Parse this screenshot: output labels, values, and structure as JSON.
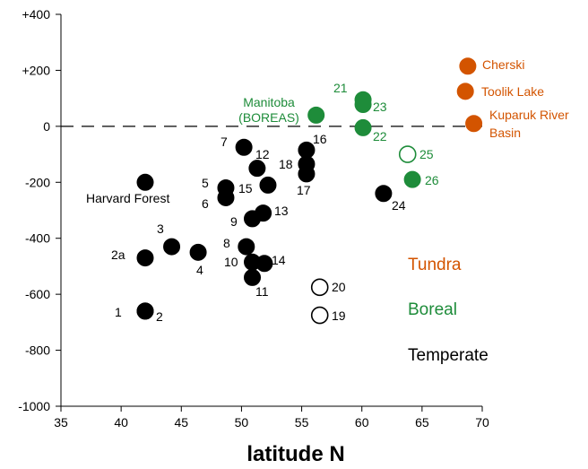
{
  "colors": {
    "tundra": "#d35400",
    "boreal": "#1e8c3a",
    "temperate": "#000000"
  },
  "chart_data": {
    "type": "scatter",
    "title": "",
    "xlabel": "latitude N",
    "ylabel": "",
    "xlim": [
      35,
      70
    ],
    "ylim": [
      -1000,
      400
    ],
    "xticks": [
      "35",
      "40",
      "45",
      "50",
      "55",
      "60",
      "65",
      "70"
    ],
    "yticks": [
      "-1000",
      "-800",
      "-600",
      "-400",
      "-200",
      "0",
      "+200",
      "+400"
    ],
    "zero_reference_line": true,
    "grid": false,
    "points": [
      {
        "id": "1",
        "x": 42.0,
        "y": -660,
        "group": "temperate",
        "filled": true
      },
      {
        "id": "2",
        "x": 42.0,
        "y": -660,
        "group": "temperate",
        "filled": true
      },
      {
        "id": "2a",
        "x": 42.0,
        "y": -470,
        "group": "temperate",
        "filled": true
      },
      {
        "id": "3",
        "x": 44.2,
        "y": -430,
        "group": "temperate",
        "filled": true
      },
      {
        "id": "4",
        "x": 46.4,
        "y": -450,
        "group": "temperate",
        "filled": true
      },
      {
        "id": "Harvard Forest",
        "x": 42.0,
        "y": -200,
        "group": "temperate",
        "filled": true
      },
      {
        "id": "5",
        "x": 48.7,
        "y": -220,
        "group": "temperate",
        "filled": true
      },
      {
        "id": "6",
        "x": 48.7,
        "y": -255,
        "group": "temperate",
        "filled": true
      },
      {
        "id": "7",
        "x": 50.2,
        "y": -75,
        "group": "temperate",
        "filled": true
      },
      {
        "id": "8",
        "x": 50.4,
        "y": -430,
        "group": "temperate",
        "filled": true
      },
      {
        "id": "9",
        "x": 50.9,
        "y": -330,
        "group": "temperate",
        "filled": true
      },
      {
        "id": "10",
        "x": 50.9,
        "y": -485,
        "group": "temperate",
        "filled": true
      },
      {
        "id": "11",
        "x": 50.9,
        "y": -540,
        "group": "temperate",
        "filled": true
      },
      {
        "id": "12",
        "x": 51.3,
        "y": -150,
        "group": "temperate",
        "filled": true
      },
      {
        "id": "13",
        "x": 51.8,
        "y": -310,
        "group": "temperate",
        "filled": true
      },
      {
        "id": "14",
        "x": 51.9,
        "y": -490,
        "group": "temperate",
        "filled": true
      },
      {
        "id": "15",
        "x": 52.2,
        "y": -210,
        "group": "temperate",
        "filled": true
      },
      {
        "id": "16",
        "x": 55.4,
        "y": -85,
        "group": "temperate",
        "filled": true
      },
      {
        "id": "17",
        "x": 55.4,
        "y": -170,
        "group": "temperate",
        "filled": true
      },
      {
        "id": "18",
        "x": 55.4,
        "y": -135,
        "group": "temperate",
        "filled": true
      },
      {
        "id": "19",
        "x": 56.5,
        "y": -675,
        "group": "temperate",
        "filled": false
      },
      {
        "id": "20",
        "x": 56.5,
        "y": -575,
        "group": "temperate",
        "filled": false
      },
      {
        "id": "24",
        "x": 61.8,
        "y": -240,
        "group": "temperate",
        "filled": true
      },
      {
        "id": "Manitoba (BOREAS)",
        "x": 56.2,
        "y": 40,
        "group": "boreal",
        "filled": true
      },
      {
        "id": "21",
        "x": 60.1,
        "y": 95,
        "group": "boreal",
        "filled": true
      },
      {
        "id": "22",
        "x": 60.1,
        "y": -5,
        "group": "boreal",
        "filled": true
      },
      {
        "id": "23",
        "x": 60.1,
        "y": 78,
        "group": "boreal",
        "filled": true
      },
      {
        "id": "25",
        "x": 63.8,
        "y": -100,
        "group": "boreal",
        "filled": false
      },
      {
        "id": "26",
        "x": 64.2,
        "y": -190,
        "group": "boreal",
        "filled": true
      },
      {
        "id": "Cherski",
        "x": 68.8,
        "y": 215,
        "group": "tundra",
        "filled": true
      },
      {
        "id": "Toolik Lake",
        "x": 68.6,
        "y": 125,
        "group": "tundra",
        "filled": true
      },
      {
        "id": "Kuparuk River Basin",
        "x": 69.3,
        "y": 10,
        "group": "tundra",
        "filled": true
      }
    ],
    "point_labels": [
      {
        "text": "Cherski",
        "group": "tundra"
      },
      {
        "text": "Toolik Lake",
        "group": "tundra"
      },
      {
        "text": "Kuparuk River",
        "group": "tundra"
      },
      {
        "text": "Basin",
        "group": "tundra"
      },
      {
        "text": "Manitoba",
        "group": "boreal"
      },
      {
        "text": "(BOREAS)",
        "group": "boreal"
      },
      {
        "text": "21",
        "group": "boreal"
      },
      {
        "text": "23",
        "group": "boreal"
      },
      {
        "text": "22",
        "group": "boreal"
      },
      {
        "text": "25",
        "group": "boreal"
      },
      {
        "text": "26",
        "group": "boreal"
      },
      {
        "text": "Harvard Forest",
        "group": "temperate"
      },
      {
        "text": "1",
        "group": "temperate"
      },
      {
        "text": "2",
        "group": "temperate"
      },
      {
        "text": "2a",
        "group": "temperate"
      },
      {
        "text": "3",
        "group": "temperate"
      },
      {
        "text": "4",
        "group": "temperate"
      },
      {
        "text": "5",
        "group": "temperate"
      },
      {
        "text": "6",
        "group": "temperate"
      },
      {
        "text": "7",
        "group": "temperate"
      },
      {
        "text": "8",
        "group": "temperate"
      },
      {
        "text": "9",
        "group": "temperate"
      },
      {
        "text": "10",
        "group": "temperate"
      },
      {
        "text": "11",
        "group": "temperate"
      },
      {
        "text": "12",
        "group": "temperate"
      },
      {
        "text": "13",
        "group": "temperate"
      },
      {
        "text": "14",
        "group": "temperate"
      },
      {
        "text": "15",
        "group": "temperate"
      },
      {
        "text": "16",
        "group": "temperate"
      },
      {
        "text": "17",
        "group": "temperate"
      },
      {
        "text": "18",
        "group": "temperate"
      },
      {
        "text": "19",
        "group": "temperate"
      },
      {
        "text": "20",
        "group": "temperate"
      },
      {
        "text": "24",
        "group": "temperate"
      }
    ],
    "legend": {
      "placement": "bottom-right",
      "entries": [
        {
          "label": "Tundra",
          "group": "tundra"
        },
        {
          "label": "Boreal",
          "group": "boreal"
        },
        {
          "label": "Temperate",
          "group": "temperate"
        }
      ]
    }
  }
}
